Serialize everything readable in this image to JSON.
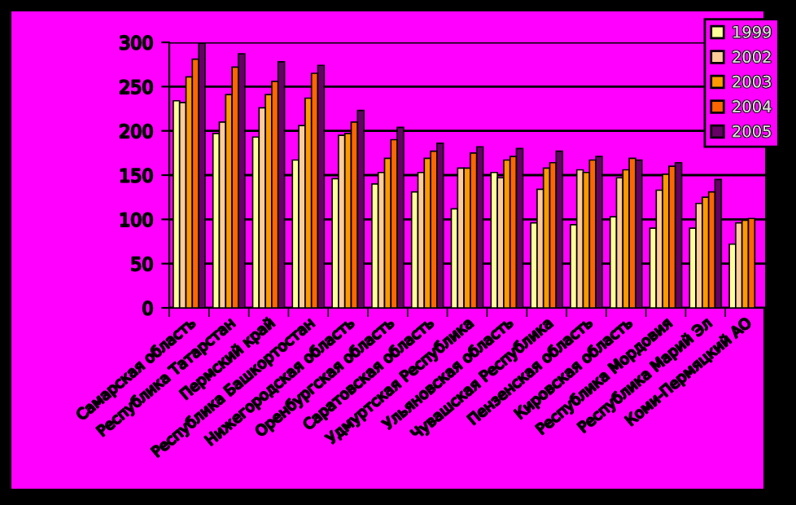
{
  "chart_data": {
    "type": "bar",
    "categories": [
      "Самарская область",
      "Республика Татарстан",
      "Пермский край",
      "Республика Башкортостан",
      "Нижегородская область",
      "Оренбургская область",
      "Саратовская область",
      "Удмуртская Республика",
      "Ульяновская область",
      "Чувашская Республика",
      "Пензенская область",
      "Кировская область",
      "Республика Мордовия",
      "Республика Марий Эл",
      "Коми-Пермяцкий АО"
    ],
    "series": [
      {
        "name": "1999",
        "color": "#ffff99",
        "values": [
          234,
          197,
          193,
          167,
          146,
          140,
          131,
          112,
          153,
          96,
          94,
          103,
          90,
          90,
          72
        ]
      },
      {
        "name": "2002",
        "color": "#ffcc99",
        "values": [
          232,
          210,
          226,
          206,
          195,
          153,
          153,
          158,
          147,
          134,
          156,
          147,
          133,
          118,
          96
        ]
      },
      {
        "name": "2003",
        "color": "#ff9900",
        "values": [
          261,
          241,
          241,
          237,
          197,
          169,
          169,
          158,
          167,
          158,
          153,
          156,
          151,
          125,
          99
        ]
      },
      {
        "name": "2004",
        "color": "#ff6600",
        "values": [
          281,
          272,
          256,
          265,
          210,
          190,
          177,
          175,
          171,
          164,
          167,
          169,
          160,
          131,
          101
        ]
      },
      {
        "name": "2005",
        "color": "#660066",
        "values": [
          299,
          287,
          278,
          274,
          223,
          204,
          186,
          182,
          180,
          177,
          171,
          167,
          164,
          145,
          null
        ]
      }
    ],
    "ylim": [
      0,
      300
    ],
    "yticks": [
      0,
      50,
      100,
      150,
      200,
      250,
      300
    ],
    "grid": "y",
    "legend": "top right"
  }
}
